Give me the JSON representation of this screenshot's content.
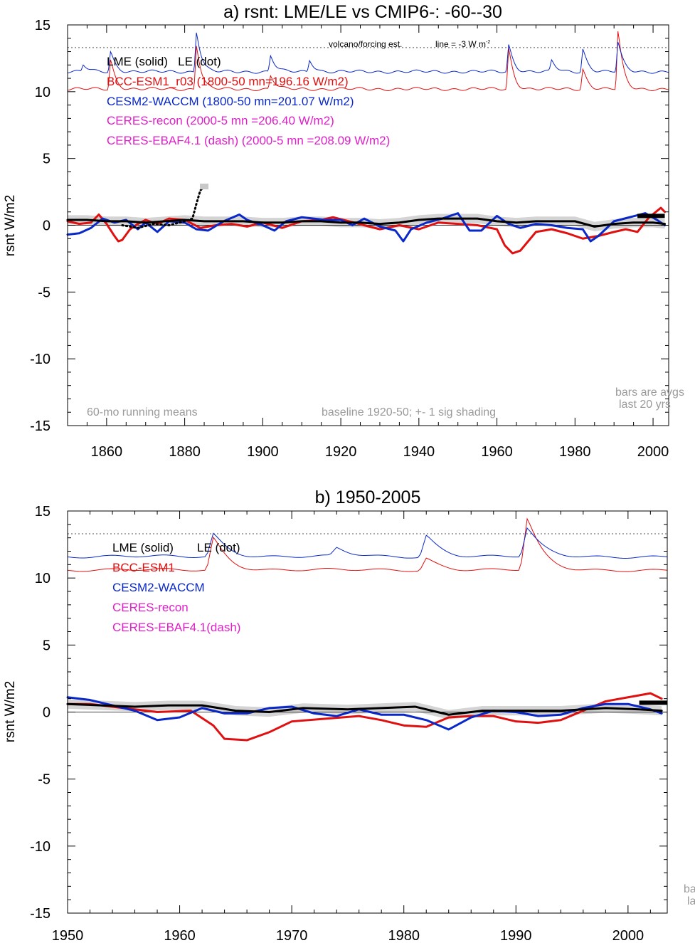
{
  "figure": {
    "panel_a_title": "a) rsnt: LME/LE vs CMIP6-: -60--30",
    "panel_b_title": "b) 1950-2005"
  },
  "colors": {
    "lme": "#000000",
    "bcc": "#e01010",
    "cesm": "#0a28c8",
    "ceres": "#e020c8",
    "gray_text": "#9a9a9a",
    "shade": "#d4d4d4"
  },
  "chart_data": [
    {
      "type": "line",
      "title": "a) rsnt: LME/LE vs CMIP6-: -60--30",
      "ylabel": "rsnt W/m2",
      "xlim": [
        1850,
        2004
      ],
      "ylim": [
        -15,
        15
      ],
      "xticks": [
        1860,
        1880,
        1900,
        1920,
        1940,
        1960,
        1980,
        2000
      ],
      "yticks": [
        15,
        10,
        5,
        0,
        -5,
        -10,
        -15
      ],
      "legend": [
        "LME (solid)   LE (dot)",
        "BCC-ESM1_r03 (1800-50 mn=196.16 W/m2)",
        "CESM2-WACCM (1800-50 mn=201.07 W/m2)",
        "CERES-recon (2000-5 mn =206.40 W/m2)",
        "CERES-EBAF4.1 (dash) (2000-5 mn =208.09 W/m2)"
      ],
      "annotations": {
        "volcano": "volcano/forcing est.",
        "line_label": "line = -3 W m",
        "line_sup": "-2",
        "running": "60-mo running means",
        "baseline": "baseline 1920-50; +- 1 sig shading",
        "bars_1": "bars are avgs",
        "bars_2": "last 20 yrs"
      },
      "dotted_ref_level": 13.3,
      "series": [
        {
          "name": "LME (solid)",
          "x": [
            1850,
            1855,
            1860,
            1865,
            1870,
            1875,
            1880,
            1885,
            1890,
            1895,
            1900,
            1905,
            1910,
            1915,
            1920,
            1925,
            1930,
            1935,
            1940,
            1945,
            1950,
            1955,
            1960,
            1965,
            1970,
            1975,
            1980,
            1985,
            1990,
            1995,
            2000,
            2003
          ],
          "y": [
            0.4,
            0.4,
            0.3,
            0.3,
            0.2,
            0.3,
            0.4,
            0.3,
            0.3,
            0.3,
            0.2,
            0.2,
            0.3,
            0.3,
            0.2,
            0.2,
            0.1,
            0.2,
            0.4,
            0.5,
            0.5,
            0.5,
            0.3,
            0.2,
            0.3,
            0.3,
            0.3,
            -0.1,
            0.1,
            0.2,
            0.2,
            0.1
          ]
        },
        {
          "name": "LE (dot)",
          "x": [
            1864,
            1868,
            1872,
            1876,
            1880,
            1882,
            1883,
            1884,
            1885
          ],
          "y": [
            0.0,
            -0.2,
            0.1,
            0.0,
            0.3,
            0.5,
            1.6,
            2.6,
            2.9
          ]
        },
        {
          "name": "BCC-ESM1_r03",
          "x": [
            1850,
            1853,
            1856,
            1858,
            1860,
            1862,
            1863,
            1864,
            1866,
            1868,
            1870,
            1873,
            1876,
            1880,
            1884,
            1888,
            1892,
            1896,
            1900,
            1905,
            1910,
            1915,
            1918,
            1922,
            1926,
            1930,
            1935,
            1940,
            1945,
            1950,
            1955,
            1960,
            1962,
            1964,
            1966,
            1968,
            1970,
            1974,
            1978,
            1982,
            1986,
            1990,
            1993,
            1996,
            1999,
            2002,
            2003
          ],
          "y": [
            0.3,
            0.1,
            0.2,
            0.8,
            0.1,
            -0.8,
            -1.2,
            -1.1,
            -0.3,
            0.1,
            0.4,
            0.1,
            0.5,
            0.4,
            -0.2,
            0.0,
            0.1,
            -0.1,
            0.2,
            -0.2,
            0.3,
            0.4,
            0.6,
            0.3,
            0.0,
            -0.3,
            0.0,
            -0.3,
            0.2,
            0.1,
            0.0,
            -0.3,
            -1.5,
            -2.1,
            -1.9,
            -1.2,
            -0.5,
            -0.3,
            -0.6,
            -1.0,
            -0.8,
            -0.5,
            -0.3,
            -0.5,
            0.6,
            1.3,
            1.0
          ]
        },
        {
          "name": "CESM2-WACCM",
          "x": [
            1850,
            1853,
            1856,
            1859,
            1862,
            1865,
            1868,
            1870,
            1873,
            1876,
            1880,
            1883,
            1886,
            1890,
            1894,
            1896,
            1900,
            1903,
            1906,
            1910,
            1913,
            1916,
            1920,
            1923,
            1926,
            1930,
            1934,
            1936,
            1938,
            1942,
            1946,
            1950,
            1953,
            1956,
            1960,
            1963,
            1966,
            1970,
            1974,
            1978,
            1982,
            1984,
            1986,
            1990,
            1994,
            1998,
            2001,
            2003
          ],
          "y": [
            -0.7,
            -0.6,
            -0.2,
            0.5,
            0.2,
            0.4,
            -0.3,
            0.2,
            -0.5,
            0.3,
            0.2,
            -0.3,
            -0.4,
            0.3,
            0.8,
            0.4,
            0.0,
            -0.4,
            0.3,
            0.6,
            0.5,
            0.4,
            0.4,
            0.0,
            0.5,
            -0.1,
            -0.4,
            -1.2,
            -0.3,
            0.2,
            0.5,
            0.9,
            -0.4,
            -0.4,
            0.7,
            0.1,
            -0.2,
            0.1,
            0.0,
            -0.2,
            -0.3,
            -1.2,
            -0.8,
            0.3,
            0.6,
            0.9,
            0.4,
            0.0
          ]
        }
      ],
      "forcing_series": [
        {
          "name": "BCC-ESM1_r03",
          "base": 10.2,
          "spikes": [
            [
              1861,
              2.2
            ],
            [
              1883,
              3.3
            ],
            [
              1902,
              1.0
            ],
            [
              1963,
              3.0
            ],
            [
              1982,
              1.5
            ],
            [
              1991,
              4.3
            ]
          ]
        },
        {
          "name": "CESM2-WACCM",
          "base": 11.5,
          "spikes": [
            [
              1854,
              0.5
            ],
            [
              1861,
              1.5
            ],
            [
              1883,
              3.0
            ],
            [
              1902,
              1.2
            ],
            [
              1912,
              0.9
            ],
            [
              1963,
              2.0
            ],
            [
              1974,
              0.8
            ],
            [
              1982,
              1.7
            ],
            [
              1991,
              2.2
            ]
          ]
        }
      ],
      "bars_last20": [
        {
          "x": [
            1996,
            2003
          ],
          "y": 0.7
        }
      ]
    },
    {
      "type": "line",
      "title": "b) 1950-2005",
      "ylabel": "rsnt W/m2",
      "xlim": [
        1950,
        2003.5
      ],
      "ylim": [
        -15,
        15
      ],
      "xticks": [
        1950,
        1960,
        1970,
        1980,
        1990,
        2000
      ],
      "yticks": [
        15,
        10,
        5,
        0,
        -5,
        -10,
        -15
      ],
      "legend": [
        "LME (solid)       LE (dot)",
        "BCC-ESM1",
        "CESM2-WACCM",
        "CERES-recon",
        "CERES-EBAF4.1(dash)"
      ],
      "annotations": {
        "ba": "ba",
        "la": "la"
      },
      "dotted_ref_level": 13.3,
      "series": [
        {
          "name": "LME (solid)",
          "x": [
            1950,
            1953,
            1956,
            1959,
            1962,
            1965,
            1968,
            1971,
            1975,
            1978,
            1981,
            1984,
            1987,
            1990,
            1994,
            1998,
            2001,
            2003
          ],
          "y": [
            0.6,
            0.5,
            0.4,
            0.5,
            0.5,
            0.1,
            0.0,
            0.3,
            0.2,
            0.3,
            0.4,
            -0.2,
            0.1,
            0.1,
            0.1,
            0.3,
            0.2,
            0.1
          ]
        },
        {
          "name": "BCC-ESM1",
          "x": [
            1950,
            1952,
            1955,
            1958,
            1961,
            1963,
            1964,
            1966,
            1968,
            1970,
            1973,
            1976,
            1978,
            1980,
            1982,
            1984,
            1986,
            1988,
            1990,
            1992,
            1994,
            1996,
            1998,
            2000,
            2002,
            2003
          ],
          "y": [
            0.6,
            0.6,
            0.3,
            0.0,
            0.1,
            -1.0,
            -2.0,
            -2.1,
            -1.5,
            -0.7,
            -0.5,
            -0.3,
            -0.6,
            -1.0,
            -1.1,
            -0.4,
            -0.3,
            -0.3,
            -0.7,
            -0.8,
            -0.6,
            0.1,
            0.8,
            1.1,
            1.4,
            1.0
          ]
        },
        {
          "name": "CESM2-WACCM",
          "x": [
            1950,
            1952,
            1954,
            1956,
            1958,
            1960,
            1962,
            1964,
            1966,
            1968,
            1970,
            1972,
            1974,
            1976,
            1978,
            1980,
            1982,
            1984,
            1986,
            1988,
            1990,
            1992,
            1994,
            1996,
            1998,
            2000,
            2002,
            2003
          ],
          "y": [
            1.1,
            0.9,
            0.5,
            0.1,
            -0.6,
            -0.4,
            0.3,
            -0.1,
            -0.1,
            0.3,
            0.4,
            -0.1,
            -0.3,
            0.2,
            -0.2,
            -0.2,
            -0.6,
            -1.3,
            -0.4,
            0.1,
            0.0,
            -0.3,
            -0.2,
            0.3,
            0.6,
            0.6,
            0.2,
            -0.1
          ]
        }
      ],
      "forcing_series": [
        {
          "name": "BCC-ESM1",
          "base": 10.6,
          "spikes": [
            [
              1963,
              2.4
            ],
            [
              1982,
              0.9
            ],
            [
              1991,
              3.8
            ]
          ]
        },
        {
          "name": "CESM2-WACCM",
          "base": 11.6,
          "spikes": [
            [
              1963,
              1.7
            ],
            [
              1974,
              0.6
            ],
            [
              1982,
              1.6
            ],
            [
              1991,
              2.1
            ]
          ]
        }
      ],
      "bars_last20": [
        {
          "x": [
            2001,
            2003.5
          ],
          "y": 0.7
        }
      ]
    }
  ]
}
